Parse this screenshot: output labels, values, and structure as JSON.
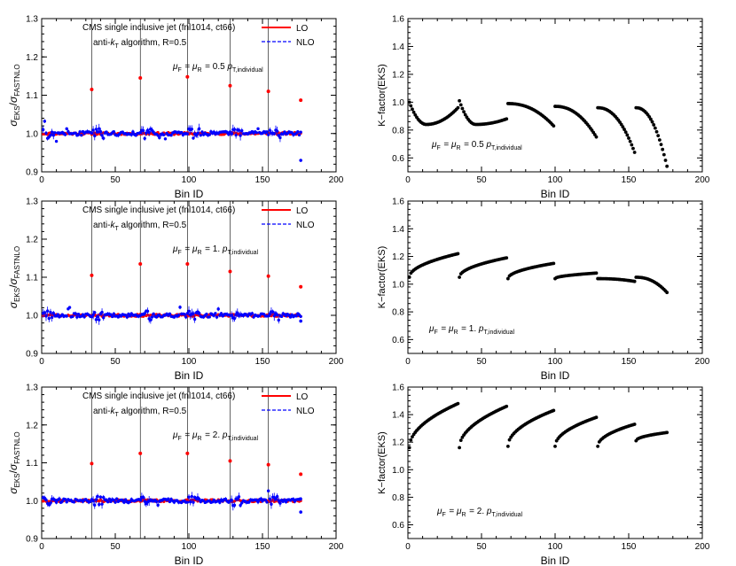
{
  "chart_data": [
    {
      "id": "ratio-0p5",
      "type": "scatter",
      "xlabel": "Bin ID",
      "ylabel_main": "σ",
      "ylabel_sub": "EKS/σFASTNLO",
      "xlim": [
        0,
        200
      ],
      "ylim": [
        0.9,
        1.3
      ],
      "xticks": [
        "0",
        "50",
        "100",
        "150",
        "200"
      ],
      "yticks": [
        "0.9",
        "1.0",
        "1.1",
        "1.2",
        "1.3"
      ],
      "annotation_lines": [
        "CMS single inclusive jet (fnl1014, ct66)",
        "anti-kT algorithm, R=0.5"
      ],
      "scale_label": "μF = μR = 0.5 pT,individual",
      "legend": [
        {
          "name": "LO",
          "color": "#ff0000",
          "style": "solid"
        },
        {
          "name": "NLO",
          "color": "#0000ff",
          "style": "dashed"
        }
      ],
      "boundaries": [
        34,
        67,
        99,
        128,
        154
      ],
      "lo_points": [
        [
          34,
          1.115
        ],
        [
          67,
          1.145
        ],
        [
          99,
          1.148
        ],
        [
          128,
          1.125
        ],
        [
          154,
          1.11
        ],
        [
          176,
          1.087
        ]
      ],
      "nlo_min": 0.93
    },
    {
      "id": "kfactor-0p5",
      "type": "scatter",
      "xlabel": "Bin ID",
      "ylabel": "K−factor(EKS)",
      "xlim": [
        0,
        200
      ],
      "ylim": [
        0.5,
        1.6
      ],
      "xticks": [
        "0",
        "50",
        "100",
        "150",
        "200"
      ],
      "yticks": [
        "0.6",
        "0.8",
        "1.0",
        "1.2",
        "1.4",
        "1.6"
      ],
      "scale_label": "μF = μR = 0.5 pT,individual",
      "segments": [
        {
          "start": 1,
          "end": 34,
          "y_first": 1.0,
          "y_min": 0.84,
          "y_last": 0.96
        },
        {
          "start": 35,
          "end": 67,
          "y_first": 1.01,
          "y_min": 0.84,
          "y_last": 0.88
        },
        {
          "start": 68,
          "end": 99,
          "y_first": 0.99,
          "y_min": 0.83,
          "y_last": 0.83
        },
        {
          "start": 100,
          "end": 128,
          "y_first": 0.97,
          "y_min": 0.75,
          "y_last": 0.75
        },
        {
          "start": 129,
          "end": 154,
          "y_first": 0.96,
          "y_min": 0.64,
          "y_last": 0.64
        },
        {
          "start": 155,
          "end": 176,
          "y_first": 0.96,
          "y_min": 0.54,
          "y_last": 0.54
        }
      ]
    },
    {
      "id": "ratio-1p0",
      "type": "scatter",
      "xlabel": "Bin ID",
      "ylabel_main": "σ",
      "ylabel_sub": "EKS/σFASTNLO",
      "xlim": [
        0,
        200
      ],
      "ylim": [
        0.9,
        1.3
      ],
      "xticks": [
        "0",
        "50",
        "100",
        "150",
        "200"
      ],
      "yticks": [
        "0.9",
        "1.0",
        "1.1",
        "1.2",
        "1.3"
      ],
      "annotation_lines": [
        "CMS single inclusive jet (fnl1014, ct66)",
        "anti-kT algorithm, R=0.5"
      ],
      "scale_label": "μF = μR = 1. pT,individual",
      "legend": [
        {
          "name": "LO",
          "color": "#ff0000",
          "style": "solid"
        },
        {
          "name": "NLO",
          "color": "#0000ff",
          "style": "dashed"
        }
      ],
      "boundaries": [
        34,
        67,
        99,
        128,
        154
      ],
      "lo_points": [
        [
          34,
          1.105
        ],
        [
          67,
          1.135
        ],
        [
          99,
          1.135
        ],
        [
          128,
          1.115
        ],
        [
          154,
          1.103
        ],
        [
          176,
          1.075
        ]
      ],
      "nlo_min": 0.985
    },
    {
      "id": "kfactor-1p0",
      "type": "scatter",
      "xlabel": "Bin ID",
      "ylabel": "K−factor(EKS)",
      "xlim": [
        0,
        200
      ],
      "ylim": [
        0.5,
        1.6
      ],
      "xticks": [
        "0",
        "50",
        "100",
        "150",
        "200"
      ],
      "yticks": [
        "0.6",
        "0.8",
        "1.0",
        "1.2",
        "1.4",
        "1.6"
      ],
      "scale_label": "μF = μR = 1. pT,individual",
      "segments": [
        {
          "start": 1,
          "end": 34,
          "y_first": 1.05,
          "y_min": 1.05,
          "y_last": 1.22
        },
        {
          "start": 35,
          "end": 67,
          "y_first": 1.05,
          "y_min": 1.05,
          "y_last": 1.19
        },
        {
          "start": 68,
          "end": 99,
          "y_first": 1.04,
          "y_min": 1.04,
          "y_last": 1.15
        },
        {
          "start": 100,
          "end": 128,
          "y_first": 1.04,
          "y_min": 1.04,
          "y_last": 1.08
        },
        {
          "start": 129,
          "end": 154,
          "y_first": 1.04,
          "y_min": 1.02,
          "y_last": 1.02
        },
        {
          "start": 155,
          "end": 176,
          "y_first": 1.05,
          "y_min": 0.94,
          "y_last": 0.94
        }
      ]
    },
    {
      "id": "ratio-2p0",
      "type": "scatter",
      "xlabel": "Bin ID",
      "ylabel_main": "σ",
      "ylabel_sub": "EKS/σFASTNLO",
      "xlim": [
        0,
        200
      ],
      "ylim": [
        0.9,
        1.3
      ],
      "xticks": [
        "0",
        "50",
        "100",
        "150",
        "200"
      ],
      "yticks": [
        "0.9",
        "1.0",
        "1.1",
        "1.2",
        "1.3"
      ],
      "annotation_lines": [
        "CMS single inclusive jet (fnl1014, ct66)",
        "anti-kT algorithm, R=0.5"
      ],
      "scale_label": "μF = μR = 2. pT,individual",
      "legend": [
        {
          "name": "LO",
          "color": "#ff0000",
          "style": "solid"
        },
        {
          "name": "NLO",
          "color": "#0000ff",
          "style": "dashed"
        }
      ],
      "boundaries": [
        34,
        67,
        99,
        128,
        154
      ],
      "lo_points": [
        [
          34,
          1.098
        ],
        [
          67,
          1.125
        ],
        [
          99,
          1.125
        ],
        [
          128,
          1.105
        ],
        [
          154,
          1.095
        ],
        [
          176,
          1.07
        ]
      ],
      "nlo_min": 0.97
    },
    {
      "id": "kfactor-2p0",
      "type": "scatter",
      "xlabel": "Bin ID",
      "ylabel": "K−factor(EKS)",
      "xlim": [
        0,
        200
      ],
      "ylim": [
        0.5,
        1.6
      ],
      "xticks": [
        "0",
        "50",
        "100",
        "150",
        "200"
      ],
      "yticks": [
        "0.6",
        "0.8",
        "1.0",
        "1.2",
        "1.4",
        "1.6"
      ],
      "scale_label": "μF = μR = 2. pT,individual",
      "segments": [
        {
          "start": 1,
          "end": 34,
          "y_first": 1.16,
          "y_min": 1.16,
          "y_last": 1.48
        },
        {
          "start": 35,
          "end": 67,
          "y_first": 1.16,
          "y_min": 1.16,
          "y_last": 1.46
        },
        {
          "start": 68,
          "end": 99,
          "y_first": 1.17,
          "y_min": 1.17,
          "y_last": 1.43
        },
        {
          "start": 100,
          "end": 128,
          "y_first": 1.17,
          "y_min": 1.17,
          "y_last": 1.38
        },
        {
          "start": 129,
          "end": 154,
          "y_first": 1.17,
          "y_min": 1.17,
          "y_last": 1.33
        },
        {
          "start": 155,
          "end": 176,
          "y_first": 1.21,
          "y_min": 1.21,
          "y_last": 1.27
        }
      ]
    }
  ]
}
